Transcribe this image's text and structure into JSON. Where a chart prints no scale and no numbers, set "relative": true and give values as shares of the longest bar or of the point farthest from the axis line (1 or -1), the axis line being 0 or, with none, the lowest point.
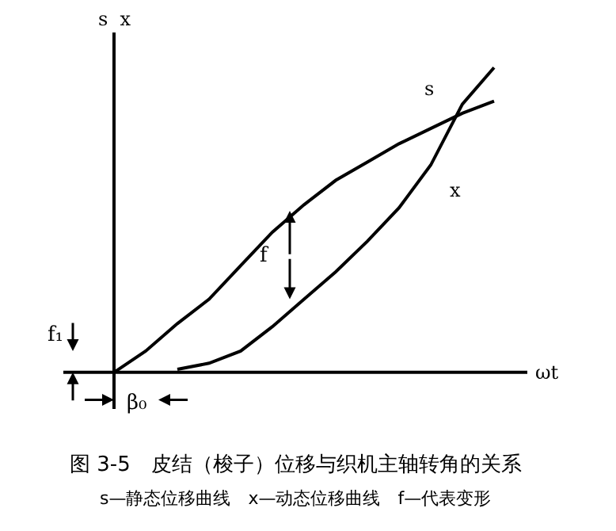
{
  "chart_data": {
    "type": "line",
    "title": "图 3-5　皮结（梭子）位移与织机主轴转角的关系",
    "subtitle": "s—静态位移曲线　x—动态位移曲线　f—代表变形",
    "xlabel": "ωt",
    "ylabel": "s  x",
    "relative": true,
    "legend": false,
    "grid": false,
    "marker": "none",
    "line_style": "solid",
    "categories": [
      null,
      null,
      null,
      null,
      null,
      null,
      null,
      null,
      null,
      null,
      null,
      null,
      null
    ],
    "series": [
      {
        "name": "s",
        "color": "#000000",
        "values": [
          0,
          0.07,
          0.16,
          0.24,
          0.35,
          0.46,
          0.55,
          0.63,
          0.69,
          0.75,
          0.8,
          0.85,
          0.89
        ]
      },
      {
        "name": "x",
        "color": "#000000",
        "values": [
          null,
          null,
          0.01,
          0.03,
          0.07,
          0.15,
          0.24,
          0.33,
          0.43,
          0.54,
          0.68,
          0.88,
          1
        ]
      }
    ],
    "annotations": [
      "f",
      "f₁",
      "β₀"
    ]
  }
}
